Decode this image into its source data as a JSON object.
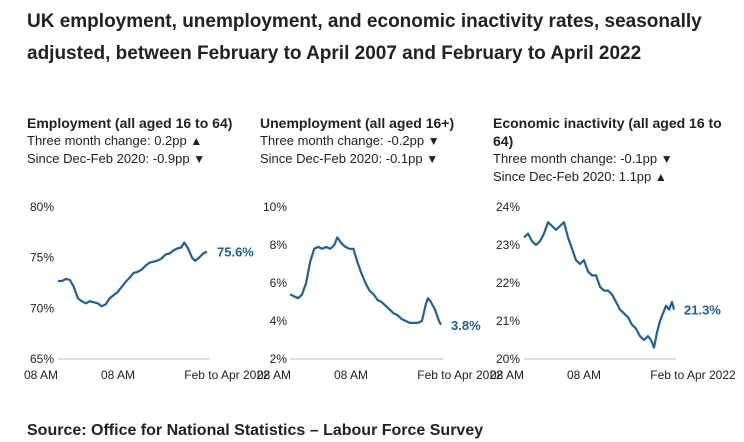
{
  "title": "UK employment, unemployment, and economic inactivity rates, seasonally adjusted, between February to April 2007 and February to April 2022",
  "source": "Source: Office for National Statistics – Labour Force Survey",
  "colors": {
    "line": "#206095",
    "axis": "#bbbbbb",
    "text": "#222222"
  },
  "chart_data": [
    {
      "type": "line",
      "title": "Employment (all aged 16 to 64)",
      "change_3m": "Three month change: 0.2pp",
      "change_3m_dir": "▲",
      "since_covid": "Since Dec-Feb 2020: -0.9pp",
      "since_covid_dir": "▼",
      "yticks": [
        "80%",
        "75%",
        "70%",
        "65%"
      ],
      "ylim": [
        65,
        80
      ],
      "xticks": [
        "08 AM",
        "08 AM",
        "Feb to Apr 2022"
      ],
      "end_label": "75.6%",
      "x_range": [
        2007.2,
        2022.2
      ],
      "series": [
        {
          "name": "Employment",
          "x": [
            2007.2,
            2007.6,
            2008.0,
            2008.4,
            2008.8,
            2009.2,
            2009.6,
            2010.0,
            2010.4,
            2010.8,
            2011.2,
            2011.6,
            2012.0,
            2012.4,
            2012.8,
            2013.2,
            2013.6,
            2014.0,
            2014.4,
            2014.8,
            2015.2,
            2015.6,
            2016.0,
            2016.4,
            2016.8,
            2017.2,
            2017.6,
            2018.0,
            2018.4,
            2018.8,
            2019.2,
            2019.6,
            2019.9,
            2020.3,
            2020.7,
            2021.0,
            2021.4,
            2021.8,
            2022.2
          ],
          "values": [
            72.7,
            72.7,
            72.9,
            72.8,
            72.1,
            71.0,
            70.7,
            70.5,
            70.7,
            70.6,
            70.5,
            70.2,
            70.4,
            71.0,
            71.3,
            71.6,
            72.1,
            72.6,
            73.0,
            73.5,
            73.6,
            73.8,
            74.2,
            74.5,
            74.6,
            74.7,
            74.9,
            75.3,
            75.4,
            75.7,
            75.9,
            76.0,
            76.5,
            75.9,
            75.0,
            74.7,
            75.0,
            75.4,
            75.6
          ]
        }
      ]
    },
    {
      "type": "line",
      "title": "Unemployment (all aged 16+)",
      "change_3m": "Three month change: -0.2pp",
      "change_3m_dir": "▼",
      "since_covid": "Since Dec-Feb 2020: -0.1pp",
      "since_covid_dir": "▼",
      "yticks": [
        "10%",
        "8%",
        "6%",
        "4%",
        "2%"
      ],
      "ylim": [
        2,
        10
      ],
      "xticks": [
        "08 AM",
        "08 AM",
        "Feb to Apr 2022"
      ],
      "end_label": "3.8%",
      "x_range": [
        2007.2,
        2022.2
      ],
      "series": [
        {
          "name": "Unemployment",
          "x": [
            2007.2,
            2007.6,
            2008.0,
            2008.4,
            2008.8,
            2009.2,
            2009.6,
            2010.0,
            2010.4,
            2010.8,
            2011.2,
            2011.6,
            2011.9,
            2012.3,
            2012.7,
            2013.1,
            2013.5,
            2013.9,
            2014.3,
            2014.7,
            2015.1,
            2015.5,
            2015.9,
            2016.3,
            2016.7,
            2017.1,
            2017.5,
            2017.9,
            2018.3,
            2018.7,
            2019.1,
            2019.5,
            2019.9,
            2020.3,
            2020.7,
            2020.9,
            2021.2,
            2021.6,
            2022.0,
            2022.2
          ],
          "values": [
            5.4,
            5.3,
            5.2,
            5.4,
            6.0,
            7.1,
            7.8,
            7.9,
            7.8,
            7.9,
            7.8,
            8.0,
            8.4,
            8.1,
            7.9,
            7.8,
            7.8,
            7.1,
            6.5,
            6.0,
            5.6,
            5.4,
            5.1,
            5.0,
            4.8,
            4.6,
            4.4,
            4.3,
            4.1,
            4.0,
            3.9,
            3.9,
            3.9,
            4.0,
            4.9,
            5.2,
            5.0,
            4.6,
            4.0,
            3.8
          ]
        }
      ]
    },
    {
      "type": "line",
      "title": "Economic inactivity (all aged 16 to 64)",
      "change_3m": "Three month change: -0.1pp",
      "change_3m_dir": "▼",
      "since_covid": "Since Dec-Feb 2020: 1.1pp",
      "since_covid_dir": "▲",
      "yticks": [
        "24%",
        "23%",
        "22%",
        "21%",
        "20%"
      ],
      "ylim": [
        20,
        24
      ],
      "xticks": [
        "08 AM",
        "08 AM",
        "Feb to Apr 2022"
      ],
      "end_label": "21.3%",
      "x_range": [
        2007.2,
        2022.2
      ],
      "series": [
        {
          "name": "Economic inactivity",
          "x": [
            2007.2,
            2007.6,
            2008.0,
            2008.4,
            2008.8,
            2009.2,
            2009.6,
            2010.0,
            2010.4,
            2010.8,
            2011.2,
            2011.6,
            2012.0,
            2012.4,
            2012.8,
            2013.2,
            2013.6,
            2014.0,
            2014.4,
            2014.8,
            2015.2,
            2015.6,
            2016.0,
            2016.4,
            2016.8,
            2017.2,
            2017.6,
            2018.0,
            2018.4,
            2018.8,
            2019.2,
            2019.6,
            2019.9,
            2020.2,
            2020.5,
            2020.8,
            2021.1,
            2021.4,
            2021.7,
            2022.0,
            2022.2
          ],
          "values": [
            23.2,
            23.3,
            23.1,
            23.0,
            23.1,
            23.3,
            23.6,
            23.5,
            23.4,
            23.5,
            23.6,
            23.2,
            22.9,
            22.6,
            22.5,
            22.6,
            22.3,
            22.2,
            22.2,
            21.9,
            21.8,
            21.8,
            21.7,
            21.5,
            21.3,
            21.2,
            21.1,
            20.9,
            20.8,
            20.6,
            20.5,
            20.6,
            20.5,
            20.3,
            20.7,
            21.0,
            21.2,
            21.4,
            21.3,
            21.5,
            21.3
          ]
        }
      ]
    }
  ]
}
